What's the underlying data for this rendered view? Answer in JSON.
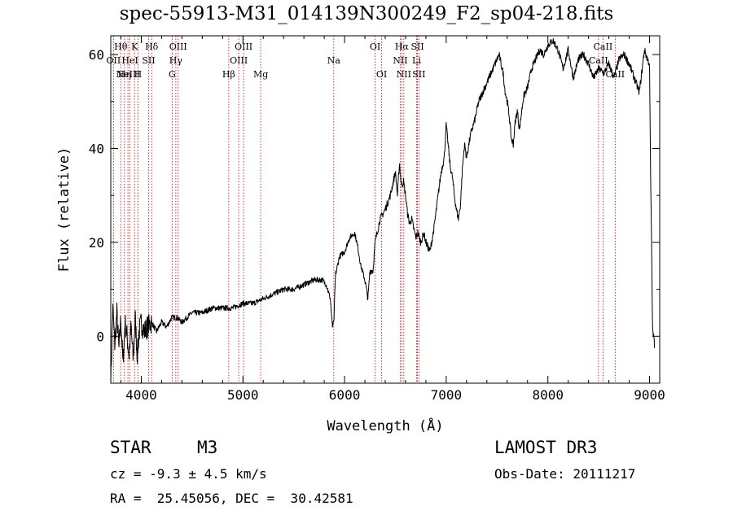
{
  "title": "spec-55913-M31_014139N300249_F2_sp04-218.fits",
  "info": {
    "object_class": "STAR",
    "subclass": "M3",
    "survey": "LAMOST DR3",
    "redshift_line": "cz = -9.3 ± 4.5 km/s",
    "obs_date": "Obs-Date: 20111217",
    "radec": "RA =  25.45056, DEC =  30.42581"
  },
  "colors": {
    "spectrum": "#000000",
    "line_marker": "#cc0000",
    "axes": "#000000"
  },
  "chart_data": {
    "type": "line",
    "title": "spec-55913-M31_014139N300249_F2_sp04-218.fits",
    "xlabel": "Wavelength (Å)",
    "ylabel": "Flux (relative)",
    "xlim": [
      3700,
      9100
    ],
    "ylim": [
      -10,
      64
    ],
    "xticks": [
      4000,
      5000,
      6000,
      7000,
      8000,
      9000
    ],
    "yticks": [
      0,
      20,
      40,
      60
    ],
    "x_minor_step": 200,
    "y_minor_step": 10,
    "line_markers": [
      {
        "wavelength": 3727,
        "label": "OII",
        "row": 2
      },
      {
        "wavelength": 3798,
        "label": "Hθ",
        "row": 1
      },
      {
        "wavelength": 3835,
        "label": "Hη",
        "row": 3
      },
      {
        "wavelength": 3869,
        "label": "NeIII",
        "row": 3
      },
      {
        "wavelength": 3889,
        "label": "HeI",
        "row": 2
      },
      {
        "wavelength": 3934,
        "label": "K",
        "row": 1
      },
      {
        "wavelength": 3968,
        "label": "H",
        "row": 3
      },
      {
        "wavelength": 4072,
        "label": "SII",
        "row": 2
      },
      {
        "wavelength": 4102,
        "label": "Hδ",
        "row": 1
      },
      {
        "wavelength": 4304,
        "label": "G",
        "row": 3
      },
      {
        "wavelength": 4340,
        "label": "Hγ",
        "row": 2
      },
      {
        "wavelength": 4363,
        "label": "OIII",
        "row": 1
      },
      {
        "wavelength": 4861,
        "label": "Hβ",
        "row": 3
      },
      {
        "wavelength": 4959,
        "label": "OIII",
        "row": 2
      },
      {
        "wavelength": 5007,
        "label": "OIII",
        "row": 1
      },
      {
        "wavelength": 5175,
        "label": "Mg",
        "row": 3
      },
      {
        "wavelength": 5894,
        "label": "Na",
        "row": 2
      },
      {
        "wavelength": 6300,
        "label": "OI",
        "row": 1
      },
      {
        "wavelength": 6364,
        "label": "OI",
        "row": 3
      },
      {
        "wavelength": 6548,
        "label": "NII",
        "row": 2
      },
      {
        "wavelength": 6563,
        "label": "Hα",
        "row": 1
      },
      {
        "wavelength": 6583,
        "label": "NII",
        "row": 3
      },
      {
        "wavelength": 6708,
        "label": "Li",
        "row": 2
      },
      {
        "wavelength": 6717,
        "label": "SII",
        "row": 1
      },
      {
        "wavelength": 6731,
        "label": "SII",
        "row": 3
      },
      {
        "wavelength": 8498,
        "label": "CaII",
        "row": 2
      },
      {
        "wavelength": 8542,
        "label": "CaII",
        "row": 1
      },
      {
        "wavelength": 8662,
        "label": "CaII",
        "row": 3
      }
    ],
    "series": [
      {
        "name": "flux",
        "x": [
          3700,
          3720,
          3740,
          3760,
          3780,
          3800,
          3820,
          3840,
          3860,
          3880,
          3900,
          3920,
          3940,
          3960,
          3980,
          4000,
          4030,
          4060,
          4100,
          4150,
          4200,
          4250,
          4300,
          4350,
          4400,
          4450,
          4500,
          4600,
          4700,
          4800,
          4900,
          5000,
          5100,
          5200,
          5300,
          5400,
          5500,
          5600,
          5700,
          5780,
          5820,
          5860,
          5880,
          5895,
          5910,
          5950,
          6000,
          6050,
          6100,
          6130,
          6160,
          6200,
          6230,
          6250,
          6280,
          6300,
          6350,
          6400,
          6450,
          6480,
          6500,
          6520,
          6540,
          6560,
          6580,
          6600,
          6620,
          6640,
          6660,
          6680,
          6700,
          6720,
          6750,
          6780,
          6800,
          6840,
          6880,
          6920,
          6950,
          6980,
          7000,
          7040,
          7060,
          7080,
          7100,
          7120,
          7140,
          7160,
          7180,
          7200,
          7240,
          7280,
          7320,
          7380,
          7440,
          7480,
          7520,
          7560,
          7580,
          7600,
          7620,
          7640,
          7660,
          7680,
          7700,
          7720,
          7760,
          7800,
          7840,
          7880,
          7920,
          7960,
          8000,
          8050,
          8100,
          8150,
          8200,
          8250,
          8300,
          8350,
          8400,
          8450,
          8500,
          8550,
          8600,
          8650,
          8700,
          8750,
          8800,
          8850,
          8900,
          8950,
          8980,
          9000,
          9010,
          9020,
          9030,
          9040,
          9050
        ],
        "y": [
          -10,
          6,
          -2,
          5,
          -3,
          4,
          -6,
          3,
          0,
          -4,
          2,
          -5,
          4,
          -4,
          1,
          3,
          1,
          2,
          3,
          1,
          3,
          2,
          4,
          4,
          3,
          4,
          5,
          5,
          6,
          6,
          6,
          7,
          7,
          8,
          9,
          10,
          10,
          11,
          12,
          12,
          11,
          8,
          2,
          3,
          13,
          17,
          18,
          21,
          22,
          19,
          15,
          12,
          8,
          14,
          14,
          20,
          25,
          27,
          30,
          33,
          35,
          30,
          37,
          32,
          33,
          30,
          26,
          24,
          25,
          23,
          21,
          22,
          20,
          22,
          20,
          18,
          23,
          30,
          35,
          38,
          45,
          36,
          34,
          30,
          27,
          25,
          28,
          36,
          41,
          38,
          43,
          46,
          50,
          53,
          56,
          58,
          60,
          56,
          52,
          50,
          47,
          42,
          41,
          46,
          48,
          44,
          51,
          53,
          57,
          59,
          61,
          60,
          62,
          63,
          61,
          57,
          61,
          55,
          59,
          60,
          58,
          55,
          57,
          56,
          58,
          55,
          59,
          60,
          58,
          55,
          52,
          61,
          59,
          58,
          35,
          20,
          1,
          0,
          -2
        ]
      }
    ]
  }
}
